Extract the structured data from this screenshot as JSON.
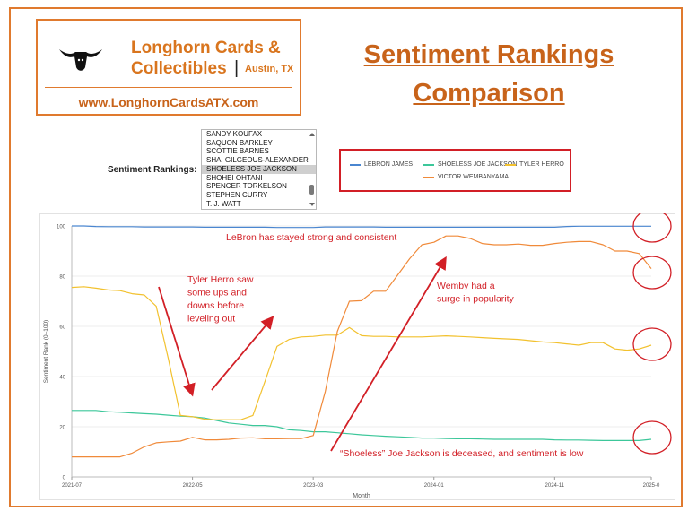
{
  "logo": {
    "brand_line1": "Longhorn Cards &",
    "brand_line2": "Collectibles",
    "brand_city": "Austin, TX",
    "website": "www.LonghornCardsATX.com"
  },
  "title": {
    "line1": "Sentiment Rankings",
    "line2": "Comparison"
  },
  "selector": {
    "label": "Sentiment Rankings:",
    "items": [
      "SANDY KOUFAX",
      "SAQUON BARKLEY",
      "SCOTTIE BARNES",
      "SHAI GILGEOUS-ALEXANDER",
      "SHOELESS JOE JACKSON",
      "SHOHEI OHTANI",
      "SPENCER TORKELSON",
      "STEPHEN CURRY",
      "T. J. WATT"
    ],
    "selected": "SHOELESS JOE JACKSON"
  },
  "legend": [
    {
      "name": "LEBRON JAMES",
      "color": "#4a86d0"
    },
    {
      "name": "SHOELESS JOE JACKSON",
      "color": "#3cc79a"
    },
    {
      "name": "TYLER HERRO",
      "color": "#f2c12e"
    },
    {
      "name": "VICTOR WEMBANYAMA",
      "color": "#f08a3a"
    }
  ],
  "annotations": {
    "lebron": "LeBron has stayed strong and consistent",
    "herro": [
      "Tyler Herro saw",
      "some ups and",
      "downs before",
      "leveling out"
    ],
    "wemby": [
      "Wemby  had a",
      "surge in popularity"
    ],
    "shoeless": "“Shoeless” Joe Jackson is deceased, and sentiment is low"
  },
  "chart_data": {
    "type": "line",
    "xlabel": "Month",
    "ylabel": "Sentiment Rank (0–100)",
    "ylim": [
      0,
      100
    ],
    "yticks": [
      0,
      20,
      40,
      60,
      80,
      100
    ],
    "xticks": [
      "2021-07",
      "2022-05",
      "2023-03",
      "2024-01",
      "2024-11",
      "2025-0"
    ],
    "grid": true,
    "x": [
      "2021-07",
      "2021-08",
      "2021-09",
      "2021-10",
      "2021-11",
      "2021-12",
      "2022-01",
      "2022-02",
      "2022-03",
      "2022-04",
      "2022-05",
      "2022-06",
      "2022-07",
      "2022-08",
      "2022-09",
      "2022-10",
      "2022-11",
      "2022-12",
      "2023-01",
      "2023-02",
      "2023-03",
      "2023-04",
      "2023-05",
      "2023-06",
      "2023-07",
      "2023-08",
      "2023-09",
      "2023-10",
      "2023-11",
      "2023-12",
      "2024-01",
      "2024-02",
      "2024-03",
      "2024-04",
      "2024-05",
      "2024-06",
      "2024-07",
      "2024-08",
      "2024-09",
      "2024-10",
      "2024-11",
      "2024-12",
      "2025-01",
      "2025-02",
      "2025-03",
      "2025-04",
      "2025-05",
      "2025-06",
      "2025-07"
    ],
    "series": [
      {
        "name": "LEBRON JAMES",
        "color": "#4a86d0",
        "values": [
          100,
          100,
          99.8,
          99.7,
          99.7,
          99.7,
          99.6,
          99.6,
          99.6,
          99.6,
          99.6,
          99.5,
          99.5,
          99.5,
          99.5,
          99.5,
          99.5,
          99.4,
          99.4,
          99.4,
          99.4,
          99.6,
          99.6,
          99.6,
          99.6,
          99.6,
          99.5,
          99.5,
          99.5,
          99.5,
          99.5,
          99.5,
          99.5,
          99.5,
          99.5,
          99.5,
          99.5,
          99.5,
          99.5,
          99.5,
          99.5,
          99.8,
          99.9,
          99.9,
          99.9,
          99.9,
          99.9,
          99.9,
          99.9
        ]
      },
      {
        "name": "SHOELESS JOE JACKSON",
        "color": "#3cc79a",
        "values": [
          26.5,
          26.5,
          26.5,
          26,
          25.8,
          25.5,
          25.2,
          25,
          24.6,
          24.2,
          24,
          23.5,
          22.5,
          21.5,
          21,
          20.5,
          20.5,
          20,
          18.8,
          18.5,
          18,
          18,
          17.6,
          17.2,
          16.8,
          16.5,
          16.2,
          16,
          15.8,
          15.5,
          15.5,
          15.3,
          15.2,
          15.2,
          15.1,
          15,
          15,
          15,
          15,
          15,
          14.8,
          14.7,
          14.7,
          14.6,
          14.5,
          14.5,
          14.5,
          14.5,
          15
        ]
      },
      {
        "name": "TYLER HERRO",
        "color": "#f2c12e",
        "values": [
          75.5,
          75.8,
          75.2,
          74.5,
          74.2,
          73,
          72.5,
          68,
          47,
          24.5,
          24,
          23,
          22.8,
          22.8,
          22.8,
          24.5,
          38,
          52,
          54.8,
          55.8,
          56,
          56.5,
          56.5,
          59.5,
          56.3,
          56,
          56,
          55.8,
          55.8,
          55.8,
          56,
          56.2,
          56,
          55.8,
          55.5,
          55.2,
          55,
          54.8,
          54.3,
          53.8,
          53.5,
          53,
          52.5,
          53.5,
          53.5,
          51,
          50.5,
          51,
          52.5
        ]
      },
      {
        "name": "VICTOR WEMBANYAMA",
        "color": "#f08a3a",
        "values": [
          8,
          8,
          8,
          8,
          8,
          9.5,
          12,
          13.6,
          14,
          14.3,
          15.8,
          14.8,
          14.8,
          15,
          15.5,
          15.6,
          15.2,
          15.2,
          15.3,
          15.3,
          16.5,
          34,
          58,
          70,
          70.2,
          74,
          74,
          80.5,
          87,
          92.5,
          93.5,
          96,
          96,
          95,
          93,
          92.5,
          92.5,
          92.8,
          92.3,
          92.3,
          93,
          93.5,
          93.8,
          93.8,
          92.5,
          90,
          90,
          89,
          83
        ]
      }
    ]
  }
}
